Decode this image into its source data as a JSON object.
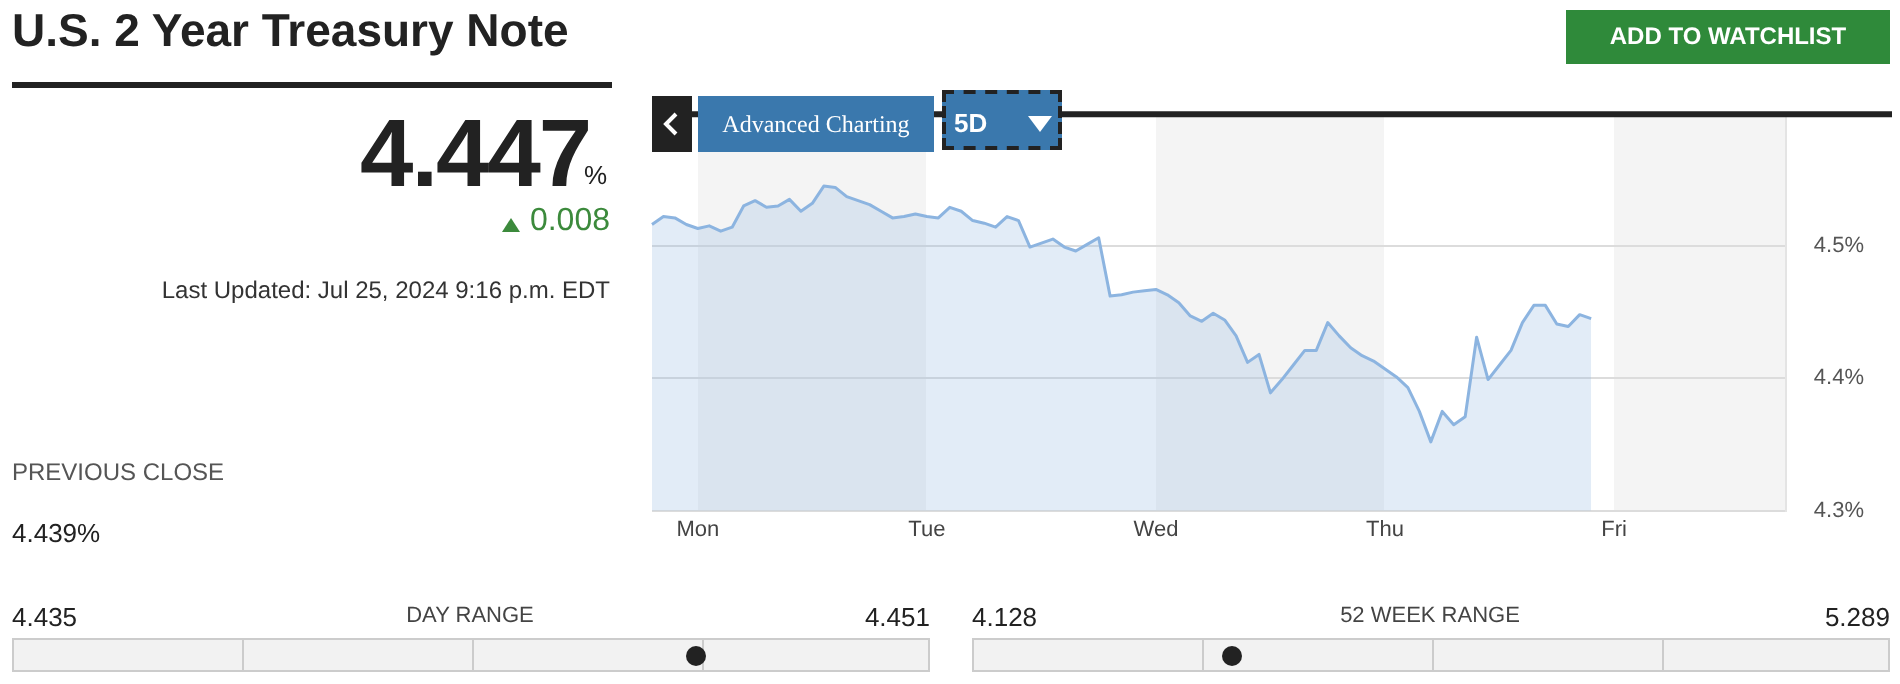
{
  "chart_data": {
    "type": "area",
    "title": "U.S. 2 Year Treasury Note",
    "categories": [
      null,
      null,
      null,
      null,
      "Mon",
      null,
      null,
      null,
      null,
      null,
      null,
      null,
      null,
      null,
      null,
      null,
      null,
      null,
      null,
      null,
      null,
      null,
      null,
      null,
      "Tue",
      null,
      null,
      null,
      null,
      null,
      null,
      null,
      null,
      null,
      null,
      null,
      null,
      null,
      null,
      null,
      null,
      null,
      null,
      null,
      "Wed",
      null,
      null,
      null,
      null,
      null,
      null,
      null,
      null,
      null,
      null,
      null,
      null,
      null,
      null,
      null,
      null,
      null,
      null,
      null,
      "Thu",
      null,
      null,
      null,
      null,
      null,
      null,
      null,
      null,
      null,
      null,
      null,
      null,
      null,
      null,
      null,
      null,
      null,
      null,
      null,
      "Fri",
      null,
      null,
      null,
      null,
      null,
      null,
      null,
      null,
      null,
      null,
      null,
      null,
      null,
      null,
      null
    ],
    "series": [
      {
        "color": "#8cb4e0",
        "values": [
          4.516,
          4.522,
          4.521,
          4.516,
          4.513,
          4.515,
          4.511,
          4.514,
          4.53,
          4.534,
          4.529,
          4.53,
          4.535,
          4.526,
          4.532,
          4.545,
          4.544,
          4.537,
          4.534,
          4.531,
          4.526,
          4.521,
          4.522,
          4.524,
          4.522,
          4.521,
          4.529,
          4.526,
          4.519,
          4.517,
          4.514,
          4.522,
          4.519,
          4.499,
          4.502,
          4.505,
          4.499,
          4.496,
          4.501,
          4.506,
          4.462,
          4.463,
          4.465,
          4.466,
          4.467,
          4.463,
          4.457,
          4.447,
          4.443,
          4.449,
          4.444,
          4.432,
          4.412,
          4.418,
          4.389,
          4.399,
          4.41,
          4.421,
          4.421,
          4.442,
          4.432,
          4.423,
          4.417,
          4.413,
          4.407,
          4.401,
          4.393,
          4.375,
          4.352,
          4.375,
          4.365,
          4.371,
          4.431,
          4.399,
          4.41,
          4.421,
          4.442,
          4.455,
          4.455,
          4.441,
          4.439,
          4.448,
          4.445,
          null,
          null,
          null,
          null,
          null,
          null,
          null,
          null,
          null,
          null,
          null,
          null,
          null,
          null,
          null,
          null,
          null
        ]
      }
    ],
    "ylim": [
      4.3,
      4.6
    ],
    "yticks": [
      {
        "value": 4.3,
        "label": "4.3%"
      },
      {
        "value": 4.4,
        "label": "4.4%"
      },
      {
        "value": 4.5,
        "label": "4.5%"
      }
    ],
    "grid": "y",
    "legend": false,
    "annotations": [
      "ADD TO WATCHLIST",
      "4.447",
      "%",
      "0.008",
      "Last Updated: Jul 25, 2024 9:16 p.m. EDT",
      "PREVIOUS CLOSE",
      "4.439%",
      "4.435",
      "DAY RANGE",
      "4.451",
      "4.128",
      "52 WEEK RANGE",
      "5.289",
      "Advanced Charting",
      "5D"
    ]
  }
}
